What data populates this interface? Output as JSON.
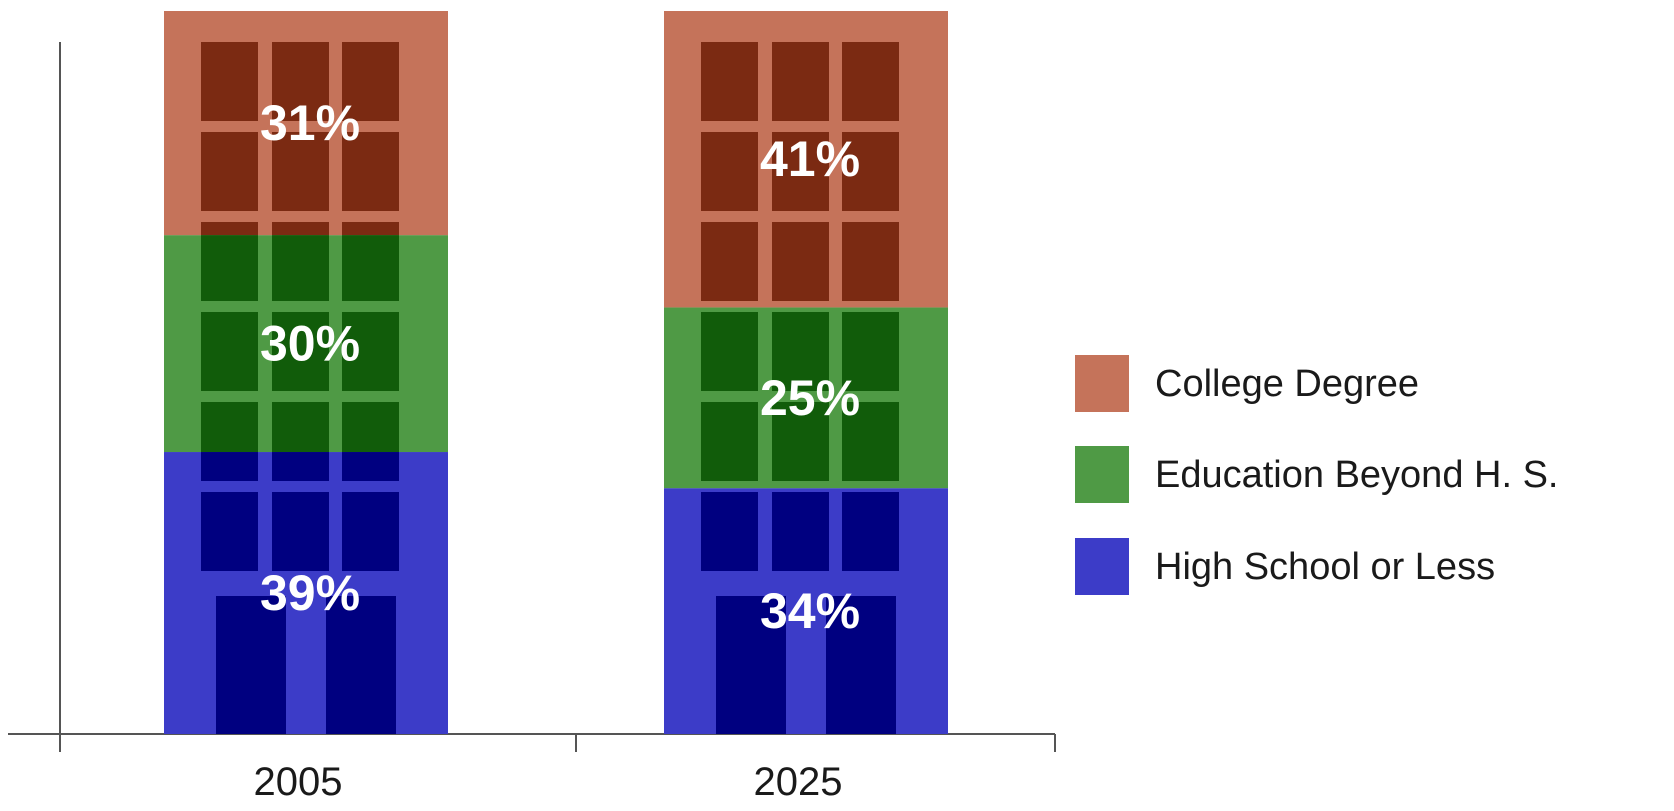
{
  "chart_data": {
    "type": "bar",
    "stacked": true,
    "categories": [
      "2005",
      "2025"
    ],
    "series": [
      {
        "name": "High School or Less",
        "values": [
          39,
          34
        ],
        "labels": [
          "39%",
          "34%"
        ],
        "color": "#3c3cc8",
        "window_color": "#000080"
      },
      {
        "name": "Education Beyond H. S.",
        "values": [
          30,
          25
        ],
        "labels": [
          "30%",
          "25%"
        ],
        "color": "#4f9a45",
        "window_color": "#115c0a"
      },
      {
        "name": "College Degree",
        "values": [
          31,
          41
        ],
        "labels": [
          "31%",
          "41%"
        ],
        "color": "#c5735a",
        "window_color": "#7b2a12"
      }
    ],
    "ylim": [
      0,
      100
    ],
    "y_ticks_shown": false,
    "grid": false,
    "legend_position": "right",
    "bar_style": "building"
  }
}
